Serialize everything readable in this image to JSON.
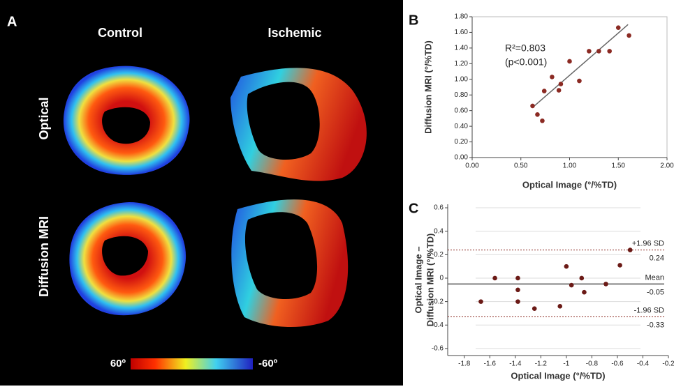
{
  "panel_a": {
    "letter": "A",
    "columns": [
      "Control",
      "Ischemic"
    ],
    "rows": [
      "Optical",
      "Diffusion MRI"
    ],
    "colorbar": [
      "60º",
      "-60º"
    ]
  },
  "chart_data": [
    {
      "type": "scatter",
      "panel": "B",
      "xlabel": "Optical Image (°/%TD)",
      "ylabel": "Diffusion MRI (°/%TD)",
      "annotations": [
        "R²=0.803",
        "(p<0.001)"
      ],
      "x": [
        0.62,
        0.67,
        0.72,
        0.74,
        0.82,
        0.89,
        0.91,
        1.0,
        1.1,
        1.2,
        1.3,
        1.41,
        1.5,
        1.61
      ],
      "values": [
        0.66,
        0.55,
        0.47,
        0.85,
        1.03,
        0.86,
        0.94,
        1.23,
        0.98,
        1.36,
        1.36,
        1.36,
        1.66,
        1.56
      ],
      "color": "#8b2a23",
      "fit_line": {
        "x": [
          0.62,
          1.6
        ],
        "y": [
          0.64,
          1.7
        ],
        "color": "#666666"
      },
      "xlim": [
        0,
        2
      ],
      "ylim": [
        0,
        1.8
      ],
      "xticks": [
        {
          "value": 0,
          "label": "0.00"
        },
        {
          "value": 0.5,
          "label": "0.50"
        },
        {
          "value": 1,
          "label": "1.00"
        },
        {
          "value": 1.5,
          "label": "1.50"
        },
        {
          "value": 2,
          "label": "2.00"
        }
      ],
      "yticks": [
        {
          "value": 0,
          "label": "0.00"
        },
        {
          "value": 0.2,
          "label": "0.20"
        },
        {
          "value": 0.4,
          "label": "0.40"
        },
        {
          "value": 0.6,
          "label": "0.60"
        },
        {
          "value": 0.8,
          "label": "0.80"
        },
        {
          "value": 1,
          "label": "1.00"
        },
        {
          "value": 1.2,
          "label": "1.20"
        },
        {
          "value": 1.4,
          "label": "1.40"
        },
        {
          "value": 1.6,
          "label": "1.60"
        },
        {
          "value": 1.8,
          "label": "1.80"
        }
      ],
      "grid": false
    },
    {
      "type": "scatter",
      "panel": "C",
      "xlabel": "Optical Image (°/%TD)",
      "ylabel": [
        "Optical Image –",
        "Diffusion MRI (°/%TD)"
      ],
      "x": [
        -1.67,
        -1.56,
        -1.38,
        -1.38,
        -1.38,
        -1.25,
        -1.05,
        -1.0,
        -0.96,
        -0.88,
        -0.86,
        -0.69,
        -0.58,
        -0.5
      ],
      "values": [
        -0.2,
        0.0,
        0.0,
        -0.1,
        -0.2,
        -0.26,
        -0.24,
        0.1,
        -0.06,
        0.0,
        -0.12,
        -0.05,
        0.11,
        0.24
      ],
      "color": "#6b1a16",
      "ref_lines": [
        {
          "name": "+1.96 SD",
          "value": 0.24,
          "color": "#8b2a23"
        },
        {
          "name": "Mean",
          "value": -0.05,
          "color": "#555555"
        },
        {
          "name": "-1.96 SD",
          "value": -0.33,
          "color": "#8b2a23"
        }
      ],
      "xlim": [
        -1.93,
        -0.2
      ],
      "ylim": [
        -0.66,
        0.63
      ],
      "xticks": [
        -1.8,
        -1.6,
        -1.4,
        -1.2,
        -1,
        -0.8,
        -0.6,
        -0.4,
        -0.2
      ],
      "yticks": [
        0.6,
        0.4,
        0.2,
        0,
        -0.2,
        -0.4,
        -0.6
      ],
      "grid": true
    }
  ]
}
